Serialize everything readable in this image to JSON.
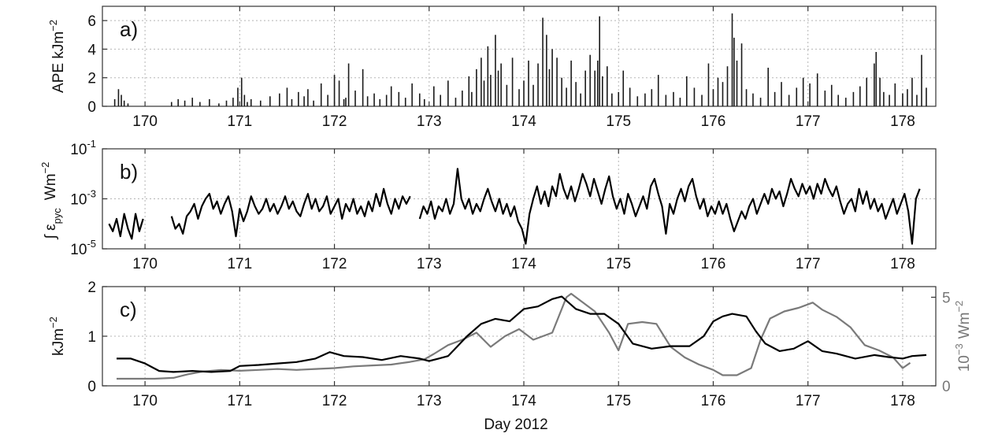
{
  "figure": {
    "xlabel": "Day 2012"
  },
  "chart_data": [
    {
      "panel": "a)",
      "type": "bar",
      "ylabel": "APE kJm",
      "ylabel_sup": "−2",
      "xlim": [
        169.55,
        178.35
      ],
      "ylim": [
        0,
        7
      ],
      "xticks": [
        170,
        171,
        172,
        173,
        174,
        175,
        176,
        177,
        178
      ],
      "yticks": [
        0,
        2,
        4,
        6
      ],
      "grid": true,
      "colors": {
        "bars": "#1a1a1a"
      },
      "x": [
        169.68,
        169.72,
        169.75,
        169.78,
        169.82,
        170.28,
        170.35,
        170.42,
        170.5,
        170.58,
        170.68,
        170.78,
        170.86,
        170.93,
        170.98,
        171.02,
        171.05,
        171.08,
        171.12,
        171.22,
        171.32,
        171.42,
        171.5,
        171.55,
        171.62,
        171.68,
        171.72,
        171.78,
        171.86,
        171.93,
        172.0,
        172.05,
        172.1,
        172.12,
        172.15,
        172.22,
        172.3,
        172.35,
        172.42,
        172.48,
        172.55,
        172.6,
        172.68,
        172.75,
        172.82,
        172.9,
        172.95,
        173.05,
        173.12,
        173.2,
        173.28,
        173.35,
        173.42,
        173.45,
        173.5,
        173.55,
        173.58,
        173.62,
        173.65,
        173.7,
        173.73,
        173.76,
        173.82,
        173.88,
        173.95,
        174.0,
        174.05,
        174.1,
        174.15,
        174.2,
        174.24,
        174.27,
        174.3,
        174.35,
        174.4,
        174.45,
        174.5,
        174.55,
        174.6,
        174.65,
        174.7,
        174.75,
        174.78,
        174.8,
        174.83,
        174.88,
        174.93,
        175.0,
        175.05,
        175.12,
        175.2,
        175.28,
        175.35,
        175.42,
        175.5,
        175.58,
        175.65,
        175.72,
        175.8,
        175.88,
        175.95,
        176.0,
        176.05,
        176.1,
        176.15,
        176.2,
        176.22,
        176.25,
        176.3,
        176.35,
        176.42,
        176.5,
        176.58,
        176.65,
        176.72,
        176.8,
        176.88,
        176.95,
        177.02,
        177.1,
        177.18,
        177.25,
        177.32,
        177.4,
        177.48,
        177.55,
        177.62,
        177.7,
        177.72,
        177.76,
        177.8,
        177.86,
        177.92,
        178.0,
        178.05,
        178.1,
        178.15,
        178.2,
        178.25
      ],
      "values": [
        0.5,
        1.2,
        0.8,
        0.4,
        0.2,
        0.3,
        0.5,
        0.4,
        0.6,
        0.3,
        0.5,
        0.2,
        0.4,
        0.6,
        1.3,
        2.0,
        0.8,
        0.3,
        0.5,
        0.4,
        0.7,
        0.9,
        1.3,
        0.5,
        1.0,
        0.7,
        1.2,
        0.4,
        1.6,
        0.8,
        2.2,
        1.8,
        0.5,
        0.6,
        3.0,
        1.1,
        2.6,
        0.7,
        0.9,
        0.5,
        0.8,
        1.4,
        1.0,
        0.6,
        1.6,
        0.9,
        0.5,
        1.4,
        0.8,
        1.8,
        0.6,
        1.1,
        2.1,
        1.0,
        2.6,
        3.4,
        1.8,
        4.2,
        2.2,
        5.0,
        2.5,
        3.0,
        1.5,
        3.4,
        1.2,
        1.8,
        3.2,
        1.5,
        3.0,
        6.2,
        5.0,
        2.6,
        4.0,
        3.4,
        2.0,
        1.3,
        3.2,
        1.7,
        0.9,
        2.5,
        3.6,
        2.5,
        3.2,
        6.3,
        2.1,
        2.8,
        0.9,
        1.0,
        2.5,
        1.3,
        0.7,
        0.9,
        1.2,
        2.2,
        0.8,
        1.0,
        0.6,
        2.1,
        1.3,
        0.8,
        3.0,
        1.2,
        2.0,
        1.7,
        2.8,
        6.5,
        4.8,
        3.2,
        4.4,
        1.2,
        0.9,
        0.6,
        2.7,
        1.0,
        1.7,
        0.8,
        1.3,
        2.0,
        1.6,
        2.3,
        1.1,
        1.5,
        0.8,
        0.6,
        1.0,
        1.4,
        2.0,
        3.0,
        3.8,
        2.0,
        1.0,
        0.8,
        1.6,
        0.9,
        1.2,
        2.0,
        0.8,
        3.6,
        1.3
      ]
    },
    {
      "panel": "b)",
      "type": "line",
      "ylabel": "∫ ε",
      "ylabel_sub": "pyc",
      "ylabel_units": "Wm",
      "ylabel_sup": "−2",
      "yscale": "log",
      "xlim": [
        169.55,
        178.35
      ],
      "ylim_exponent": [
        -5,
        -1
      ],
      "xticks": [
        170,
        171,
        172,
        173,
        174,
        175,
        176,
        177,
        178
      ],
      "ytick_exponents": [
        -5,
        -3,
        -1
      ],
      "grid": true,
      "colors": {
        "line": "#000000"
      },
      "x": [
        169.62,
        169.66,
        169.7,
        169.74,
        169.78,
        169.82,
        169.86,
        169.9,
        169.94,
        169.98,
        null,
        170.28,
        170.32,
        170.36,
        170.4,
        170.44,
        170.48,
        170.52,
        170.56,
        170.6,
        170.64,
        170.68,
        170.72,
        170.76,
        170.8,
        170.84,
        170.88,
        170.92,
        170.96,
        171.0,
        171.04,
        171.08,
        171.12,
        171.16,
        171.2,
        171.24,
        171.28,
        171.32,
        171.36,
        171.4,
        171.44,
        171.48,
        171.52,
        171.56,
        171.6,
        171.64,
        171.68,
        171.72,
        171.76,
        171.8,
        171.84,
        171.88,
        171.92,
        171.96,
        172.0,
        172.04,
        172.08,
        172.12,
        172.16,
        172.2,
        172.24,
        172.28,
        172.32,
        172.36,
        172.4,
        172.44,
        172.48,
        172.52,
        172.56,
        172.6,
        172.64,
        172.68,
        172.72,
        172.76,
        172.8,
        null,
        172.9,
        172.94,
        172.98,
        173.02,
        173.06,
        173.1,
        173.14,
        173.18,
        173.22,
        173.26,
        173.3,
        173.34,
        173.38,
        173.42,
        173.46,
        173.5,
        173.54,
        173.58,
        173.62,
        173.66,
        173.7,
        173.74,
        173.78,
        173.82,
        173.86,
        173.9,
        173.94,
        173.98,
        174.02,
        174.06,
        174.1,
        174.14,
        174.18,
        174.22,
        174.26,
        174.3,
        174.34,
        174.38,
        174.42,
        174.46,
        174.5,
        174.54,
        174.58,
        174.62,
        174.66,
        174.7,
        174.74,
        174.78,
        174.82,
        174.86,
        174.9,
        174.94,
        174.98,
        175.02,
        175.06,
        175.1,
        175.14,
        175.18,
        175.22,
        175.26,
        175.3,
        175.34,
        175.38,
        175.42,
        175.46,
        175.5,
        175.54,
        175.58,
        175.62,
        175.66,
        175.7,
        175.74,
        175.78,
        175.82,
        175.86,
        175.9,
        175.94,
        175.98,
        176.02,
        176.06,
        176.1,
        176.14,
        176.18,
        176.22,
        176.26,
        176.3,
        176.34,
        176.38,
        176.42,
        176.46,
        176.5,
        176.54,
        176.58,
        176.62,
        176.66,
        176.7,
        176.74,
        176.78,
        176.82,
        176.86,
        176.9,
        176.94,
        176.98,
        177.02,
        177.06,
        177.1,
        177.14,
        177.18,
        177.22,
        177.26,
        177.3,
        177.34,
        177.38,
        177.42,
        177.46,
        177.5,
        177.54,
        177.58,
        177.62,
        177.66,
        177.7,
        177.74,
        177.78,
        177.82,
        177.86,
        177.9,
        177.94,
        177.98,
        178.02,
        178.06,
        178.1,
        178.14,
        178.18,
        178.22,
        178.26,
        178.3,
        178.34
      ],
      "log10_values": [
        -4.0,
        -4.3,
        -3.8,
        -4.5,
        -3.6,
        -4.2,
        -4.6,
        -3.6,
        -4.3,
        -3.8,
        null,
        -3.7,
        -4.2,
        -4.0,
        -4.4,
        -3.7,
        -3.5,
        -3.2,
        -3.8,
        -3.3,
        -3.0,
        -2.8,
        -3.4,
        -3.1,
        -3.6,
        -3.2,
        -2.9,
        -3.5,
        -4.5,
        -3.4,
        -3.9,
        -3.5,
        -2.9,
        -3.3,
        -3.6,
        -3.4,
        -3.0,
        -3.5,
        -3.2,
        -3.6,
        -3.3,
        -2.9,
        -3.4,
        -3.1,
        -3.5,
        -3.7,
        -3.2,
        -2.8,
        -3.4,
        -3.0,
        -3.5,
        -3.3,
        -2.9,
        -3.6,
        -3.3,
        -3.0,
        -3.8,
        -3.2,
        -3.5,
        -3.0,
        -3.6,
        -3.3,
        -3.7,
        -3.1,
        -3.5,
        -2.8,
        -3.3,
        -2.6,
        -3.2,
        -3.6,
        -3.0,
        -3.4,
        -2.9,
        -3.2,
        -2.9,
        null,
        -3.8,
        -3.3,
        -3.6,
        -3.1,
        -3.8,
        -3.3,
        -3.5,
        -3.0,
        -3.6,
        -3.2,
        -1.8,
        -3.0,
        -3.4,
        -3.0,
        -3.6,
        -3.2,
        -3.5,
        -3.0,
        -2.6,
        -3.1,
        -3.5,
        -3.0,
        -3.6,
        -3.2,
        -3.7,
        -3.3,
        -3.9,
        -4.2,
        -4.8,
        -3.6,
        -3.0,
        -2.5,
        -3.2,
        -2.7,
        -3.3,
        -2.5,
        -2.9,
        -2.0,
        -2.6,
        -3.0,
        -2.5,
        -3.1,
        -2.6,
        -2.0,
        -2.4,
        -2.9,
        -2.2,
        -2.7,
        -3.2,
        -2.6,
        -2.1,
        -2.9,
        -3.4,
        -3.0,
        -3.6,
        -2.8,
        -3.2,
        -3.7,
        -3.3,
        -2.9,
        -3.4,
        -2.5,
        -2.2,
        -2.8,
        -3.3,
        -4.4,
        -3.2,
        -3.6,
        -3.0,
        -2.6,
        -3.1,
        -2.5,
        -2.2,
        -2.9,
        -3.4,
        -3.0,
        -3.7,
        -3.3,
        -3.6,
        -3.1,
        -3.6,
        -3.2,
        -3.8,
        -4.3,
        -3.9,
        -3.5,
        -3.8,
        -3.3,
        -3.0,
        -3.6,
        -3.2,
        -2.8,
        -3.2,
        -2.6,
        -3.0,
        -2.7,
        -3.3,
        -2.8,
        -2.2,
        -2.6,
        -2.9,
        -2.4,
        -2.8,
        -2.5,
        -3.0,
        -2.4,
        -2.8,
        -2.2,
        -2.6,
        -2.9,
        -2.5,
        -3.1,
        -3.6,
        -3.2,
        -3.0,
        -3.5,
        -2.6,
        -3.2,
        -2.7,
        -3.4,
        -3.0,
        -3.5,
        -3.2,
        -3.8,
        -3.4,
        -3.0,
        -3.6,
        -3.2,
        -2.8,
        -3.5,
        -4.8,
        -3.0,
        -2.6
      ]
    },
    {
      "panel": "c)",
      "type": "line",
      "ylabel_left": "kJm",
      "ylabel_left_sup": "−2",
      "ylabel_right_prefix": "10",
      "ylabel_right_prefix_sup": "−3",
      "ylabel_right_units": "Wm",
      "ylabel_right_sup": "−2",
      "xlim": [
        169.55,
        178.35
      ],
      "ylim_left": [
        0,
        2
      ],
      "ylim_right": [
        0,
        5.6
      ],
      "xticks": [
        170,
        171,
        172,
        173,
        174,
        175,
        176,
        177,
        178
      ],
      "yticks_left": [
        0,
        1,
        2
      ],
      "yticks_right": [
        0,
        5
      ],
      "grid": true,
      "colors": {
        "left_axis_series": "#000000",
        "right_axis_series": "#7a7a7a"
      },
      "series": [
        {
          "axis": "left",
          "x": [
            169.7,
            169.85,
            170.0,
            170.15,
            170.3,
            170.5,
            170.7,
            170.9,
            171.0,
            171.2,
            171.4,
            171.6,
            171.8,
            171.95,
            172.1,
            172.3,
            172.5,
            172.7,
            172.9,
            173.0,
            173.1,
            173.2,
            173.3,
            173.4,
            173.55,
            173.7,
            173.85,
            174.0,
            174.15,
            174.3,
            174.4,
            174.55,
            174.7,
            174.85,
            175.0,
            175.15,
            175.35,
            175.55,
            175.75,
            175.9,
            176.0,
            176.1,
            176.2,
            176.35,
            176.45,
            176.55,
            176.7,
            176.85,
            177.0,
            177.15,
            177.3,
            177.5,
            177.7,
            177.85,
            178.0,
            178.1,
            178.25
          ],
          "values": [
            0.55,
            0.55,
            0.45,
            0.3,
            0.28,
            0.3,
            0.28,
            0.3,
            0.4,
            0.42,
            0.45,
            0.48,
            0.55,
            0.68,
            0.6,
            0.58,
            0.52,
            0.6,
            0.55,
            0.5,
            0.55,
            0.6,
            0.8,
            1.0,
            1.25,
            1.35,
            1.3,
            1.55,
            1.6,
            1.75,
            1.8,
            1.55,
            1.45,
            1.45,
            1.25,
            0.85,
            0.75,
            0.8,
            0.8,
            1.0,
            1.3,
            1.4,
            1.45,
            1.4,
            1.1,
            0.85,
            0.7,
            0.75,
            0.9,
            0.7,
            0.65,
            0.55,
            0.62,
            0.58,
            0.55,
            0.6,
            0.62
          ]
        },
        {
          "axis": "right",
          "x": [
            169.7,
            169.9,
            170.1,
            170.3,
            170.45,
            170.6,
            170.8,
            171.0,
            171.2,
            171.4,
            171.6,
            171.8,
            172.0,
            172.2,
            172.4,
            172.6,
            172.8,
            172.95,
            173.05,
            173.2,
            173.35,
            173.5,
            173.65,
            173.8,
            173.95,
            174.1,
            174.3,
            174.45,
            174.5,
            174.6,
            174.75,
            174.9,
            175.0,
            175.1,
            175.25,
            175.4,
            175.55,
            175.7,
            175.85,
            176.0,
            176.1,
            176.25,
            176.4,
            176.5,
            176.6,
            176.75,
            176.9,
            177.05,
            177.15,
            177.3,
            177.45,
            177.6,
            177.75,
            177.9,
            178.0,
            178.08
          ],
          "values": [
            0.4,
            0.4,
            0.4,
            0.45,
            0.65,
            0.8,
            0.9,
            0.85,
            0.9,
            0.95,
            0.9,
            0.95,
            1.0,
            1.1,
            1.15,
            1.2,
            1.35,
            1.5,
            1.8,
            2.3,
            2.6,
            3.0,
            2.2,
            2.8,
            3.2,
            2.6,
            3.0,
            5.0,
            5.2,
            4.8,
            4.2,
            3.0,
            2.0,
            3.5,
            3.6,
            3.5,
            2.2,
            1.6,
            1.2,
            0.9,
            0.6,
            0.6,
            1.0,
            2.6,
            3.8,
            4.2,
            4.4,
            4.7,
            4.3,
            3.9,
            3.3,
            2.3,
            2.0,
            1.6,
            1.0,
            1.3
          ]
        }
      ]
    }
  ]
}
